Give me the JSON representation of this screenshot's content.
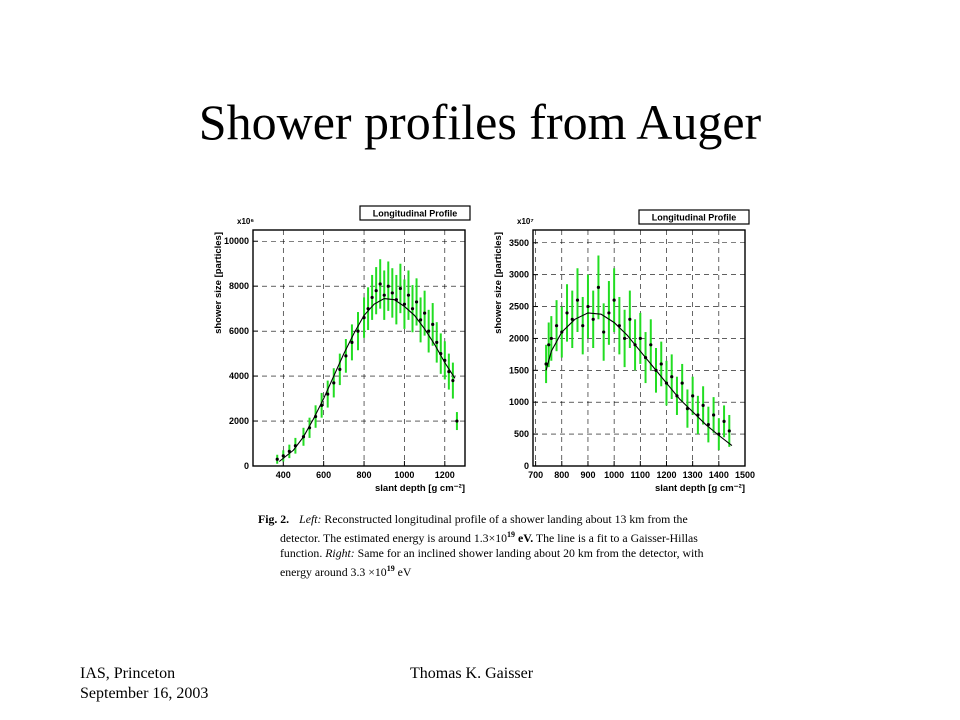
{
  "title": "Shower profiles from Auger",
  "chart_data": [
    {
      "type": "scatter",
      "title": "Longitudinal Profile",
      "xlabel": "slant depth [g cm⁻²]",
      "ylabel": "shower size [particles]",
      "yscale_label": "x10⁶",
      "xlim": [
        250,
        1300
      ],
      "ylim": [
        0,
        10500
      ],
      "xticks": [
        400,
        600,
        800,
        1000,
        1200
      ],
      "yticks": [
        0,
        2000,
        4000,
        6000,
        8000,
        10000
      ],
      "grid": true,
      "fit": {
        "name": "Gaisser-Hillas",
        "x": [
          380,
          450,
          500,
          550,
          600,
          650,
          700,
          750,
          800,
          850,
          900,
          950,
          1000,
          1050,
          1100,
          1150,
          1200,
          1250
        ],
        "y": [
          200,
          700,
          1300,
          2100,
          3000,
          4000,
          5000,
          5900,
          6700,
          7200,
          7450,
          7400,
          7100,
          6700,
          6100,
          5400,
          4600,
          3900
        ]
      },
      "series": [
        {
          "x": [
            370,
            400,
            430,
            460,
            500,
            530,
            560,
            590,
            620,
            650,
            680,
            710,
            740,
            770,
            800,
            820,
            840,
            860,
            880,
            900,
            920,
            940,
            960,
            980,
            1000,
            1020,
            1040,
            1060,
            1080,
            1100,
            1120,
            1140,
            1160,
            1180,
            1200,
            1220,
            1240,
            1260
          ],
          "y": [
            300,
            450,
            650,
            900,
            1300,
            1700,
            2200,
            2700,
            3200,
            3700,
            4300,
            4900,
            5500,
            6000,
            6600,
            7000,
            7500,
            7800,
            8100,
            7600,
            8000,
            7700,
            7400,
            7900,
            7200,
            7600,
            7000,
            7300,
            6500,
            6800,
            6000,
            6300,
            5500,
            5000,
            4700,
            4200,
            3800,
            2000
          ],
          "err": [
            200,
            250,
            300,
            350,
            400,
            450,
            500,
            550,
            600,
            650,
            700,
            750,
            800,
            850,
            900,
            950,
            1000,
            1050,
            1100,
            1100,
            1100,
            1100,
            1100,
            1100,
            1100,
            1100,
            1050,
            1050,
            1000,
            1000,
            950,
            950,
            900,
            900,
            850,
            800,
            800,
            400
          ]
        }
      ]
    },
    {
      "type": "scatter",
      "title": "Longitudinal Profile",
      "xlabel": "slant depth [g cm⁻²]",
      "ylabel": "shower size [particles]",
      "yscale_label": "x10⁷",
      "xlim": [
        690,
        1500
      ],
      "ylim": [
        0,
        3700
      ],
      "xticks": [
        700,
        800,
        900,
        1000,
        1100,
        1200,
        1300,
        1400,
        1500
      ],
      "yticks": [
        0,
        500,
        1000,
        1500,
        2000,
        2500,
        3000,
        3500
      ],
      "grid": true,
      "fit": {
        "name": "Gaisser-Hillas",
        "x": [
          740,
          760,
          800,
          850,
          900,
          950,
          1000,
          1050,
          1100,
          1150,
          1200,
          1250,
          1300,
          1350,
          1400,
          1450
        ],
        "y": [
          1500,
          1800,
          2100,
          2300,
          2400,
          2380,
          2250,
          2050,
          1800,
          1550,
          1300,
          1050,
          850,
          650,
          480,
          320
        ]
      },
      "series": [
        {
          "x": [
            740,
            750,
            760,
            780,
            800,
            820,
            840,
            860,
            880,
            900,
            920,
            940,
            960,
            980,
            1000,
            1020,
            1040,
            1060,
            1080,
            1100,
            1120,
            1140,
            1160,
            1180,
            1200,
            1220,
            1240,
            1260,
            1280,
            1300,
            1320,
            1340,
            1360,
            1380,
            1400,
            1420,
            1440
          ],
          "y": [
            1600,
            1900,
            2000,
            2200,
            2100,
            2400,
            2300,
            2600,
            2200,
            2500,
            2300,
            2800,
            2100,
            2400,
            2600,
            2200,
            2000,
            2300,
            1900,
            2000,
            1700,
            1900,
            1500,
            1600,
            1300,
            1400,
            1100,
            1300,
            900,
            1100,
            800,
            950,
            650,
            800,
            500,
            700,
            550
          ],
          "err": [
            300,
            350,
            350,
            400,
            400,
            450,
            450,
            500,
            450,
            500,
            450,
            500,
            450,
            500,
            500,
            450,
            450,
            450,
            400,
            400,
            400,
            400,
            350,
            350,
            350,
            350,
            300,
            300,
            300,
            300,
            300,
            300,
            280,
            280,
            250,
            250,
            250
          ]
        }
      ]
    }
  ],
  "caption": {
    "fig_label": "Fig. 2.",
    "lines": [
      {
        "parts": [
          {
            "t": "Left:",
            "s": "i"
          },
          {
            "t": " Reconstructed longitudinal profile of a shower landing about 13 km from the",
            "s": ""
          }
        ]
      },
      {
        "parts": [
          {
            "t": "detector. The estimated energy is around 1.3×10",
            "s": ""
          },
          {
            "t": "19",
            "s": "sup"
          },
          {
            "t": " eV.",
            "s": "b"
          },
          {
            "t": " The line is a fit to a Gaisser-Hillas",
            "s": ""
          }
        ]
      },
      {
        "parts": [
          {
            "t": "function. ",
            "s": ""
          },
          {
            "t": "Right:",
            "s": "i"
          },
          {
            "t": " Same for an inclined shower landing about 20 km from the detector, with",
            "s": ""
          }
        ]
      },
      {
        "parts": [
          {
            "t": "energy around 3.3 ×10",
            "s": ""
          },
          {
            "t": "19",
            "s": "sup"
          },
          {
            "t": " eV",
            "s": ""
          }
        ]
      }
    ]
  },
  "footer": {
    "left_line1": "IAS, Princeton",
    "left_line2": "September 16, 2003",
    "center": "Thomas K. Gaisser"
  },
  "colors": {
    "points": "#000000",
    "errorbars": "#22dd22",
    "grid": "#000000",
    "fit": "#000000"
  }
}
